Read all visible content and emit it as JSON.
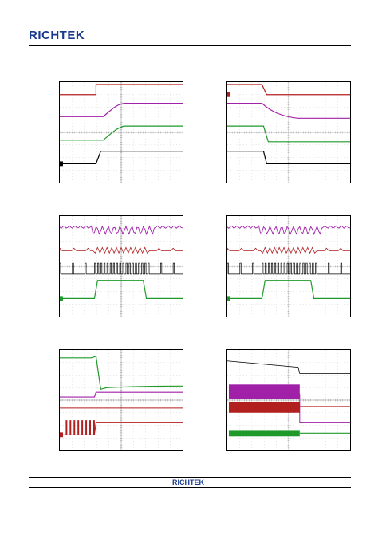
{
  "header": {
    "logo_text": "RICHTEK"
  },
  "footer": {
    "logo_text": "RICHTEK"
  },
  "colors": {
    "red": "#b21f1f",
    "purple": "#a020a8",
    "green": "#1f9a2a",
    "black": "#000000",
    "gray": "#777777"
  },
  "scopes": [
    {
      "id": "scope-1",
      "traces": [
        {
          "color": "red",
          "kind": "step-up",
          "level": 0.85,
          "step": 0.3
        },
        {
          "color": "purple",
          "kind": "ramp-up",
          "level": 0.62,
          "step": 0.35
        },
        {
          "color": "green",
          "kind": "ramp-up",
          "level": 0.4,
          "step": 0.35
        },
        {
          "color": "black",
          "kind": "step-up",
          "level": 0.18,
          "step": 0.32
        }
      ]
    },
    {
      "id": "scope-2",
      "traces": [
        {
          "color": "red",
          "kind": "step-down",
          "level": 0.85,
          "step": 0.3
        },
        {
          "color": "purple",
          "kind": "decay",
          "level": 0.62,
          "step": 0.3
        },
        {
          "color": "green",
          "kind": "step-down",
          "level": 0.4,
          "step": 0.32
        },
        {
          "color": "black",
          "kind": "step-down",
          "level": 0.18,
          "step": 0.32
        }
      ]
    }
  ]
}
